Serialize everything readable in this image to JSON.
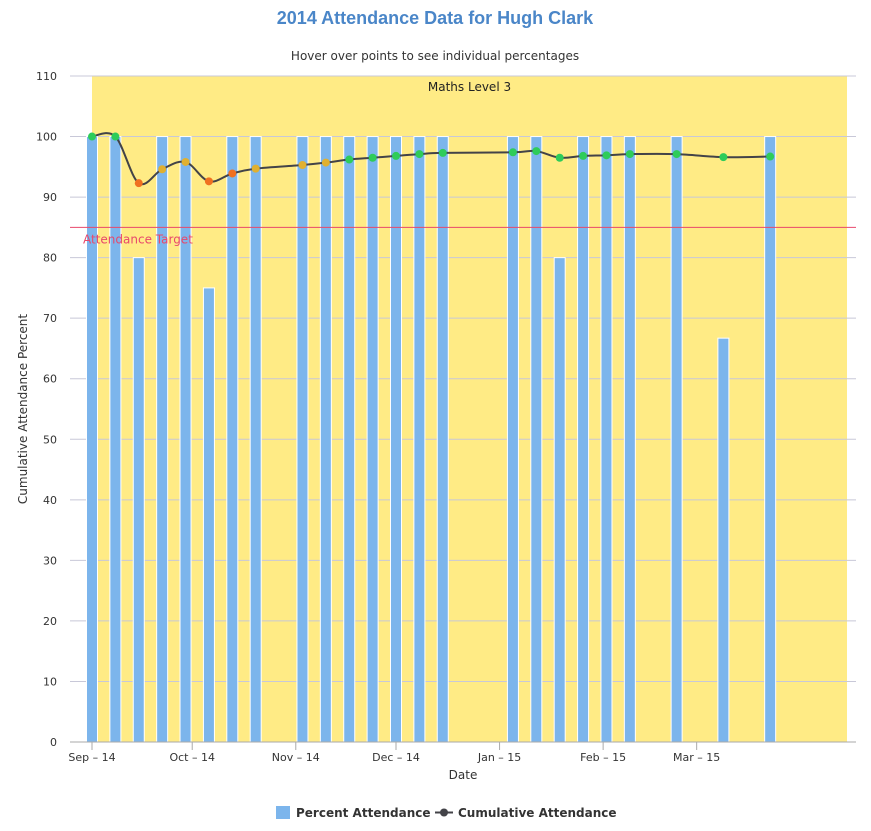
{
  "chart_data": {
    "type": "bar",
    "title": "2014 Attendance Data for Hugh Clark",
    "subtitle": "Hover over points to see individual percentages",
    "xlabel": "Date",
    "ylabel": "Cumulative Attendance Percent",
    "ylim": [
      0,
      110
    ],
    "yticks": [
      0,
      10,
      20,
      30,
      40,
      50,
      60,
      70,
      80,
      90,
      100,
      110
    ],
    "grid": true,
    "x_start": "2014-09-01",
    "x_end": "2015-04-15",
    "xticks": [
      {
        "date": "2014-09-01",
        "label": "Sep – 14"
      },
      {
        "date": "2014-10-01",
        "label": "Oct – 14"
      },
      {
        "date": "2014-11-01",
        "label": "Nov – 14"
      },
      {
        "date": "2014-12-01",
        "label": "Dec – 14"
      },
      {
        "date": "2015-01-01",
        "label": "Jan – 15"
      },
      {
        "date": "2015-02-01",
        "label": "Feb – 15"
      },
      {
        "date": "2015-03-01",
        "label": "Mar – 15"
      }
    ],
    "plot_band": {
      "label": "Maths Level 3",
      "from": 0,
      "to": 110,
      "x_from": "2014-09-01",
      "x_to": "2015-04-15",
      "color": "#ffeb85"
    },
    "plot_line": {
      "label": "Attendance Target",
      "value": 85,
      "color": "#e8486b"
    },
    "series": [
      {
        "name": "Percent Attendance",
        "type": "bar",
        "color": "#7cb5ec",
        "points": [
          {
            "x": "2014-09-01",
            "y": 100
          },
          {
            "x": "2014-09-08",
            "y": 100
          },
          {
            "x": "2014-09-15",
            "y": 80
          },
          {
            "x": "2014-09-22",
            "y": 100
          },
          {
            "x": "2014-09-29",
            "y": 100
          },
          {
            "x": "2014-10-06",
            "y": 75
          },
          {
            "x": "2014-10-13",
            "y": 100
          },
          {
            "x": "2014-10-20",
            "y": 100
          },
          {
            "x": "2014-11-03",
            "y": 100
          },
          {
            "x": "2014-11-10",
            "y": 100
          },
          {
            "x": "2014-11-17",
            "y": 100
          },
          {
            "x": "2014-11-24",
            "y": 100
          },
          {
            "x": "2014-12-01",
            "y": 100
          },
          {
            "x": "2014-12-08",
            "y": 100
          },
          {
            "x": "2014-12-15",
            "y": 100
          },
          {
            "x": "2015-01-05",
            "y": 100
          },
          {
            "x": "2015-01-12",
            "y": 100
          },
          {
            "x": "2015-01-19",
            "y": 80
          },
          {
            "x": "2015-01-26",
            "y": 100
          },
          {
            "x": "2015-02-02",
            "y": 100
          },
          {
            "x": "2015-02-09",
            "y": 100
          },
          {
            "x": "2015-02-23",
            "y": 100
          },
          {
            "x": "2015-03-09",
            "y": 66.7
          },
          {
            "x": "2015-03-23",
            "y": 100
          }
        ]
      },
      {
        "name": "Cumulative Attendance",
        "type": "spline",
        "color": "#434348",
        "points": [
          {
            "x": "2014-09-01",
            "y": 100,
            "color": "#2ecc5a"
          },
          {
            "x": "2014-09-08",
            "y": 100,
            "color": "#2ecc5a"
          },
          {
            "x": "2014-09-15",
            "y": 92.3,
            "color": "#f07020"
          },
          {
            "x": "2014-09-22",
            "y": 94.6,
            "color": "#e0b030"
          },
          {
            "x": "2014-09-29",
            "y": 95.8,
            "color": "#e0b030"
          },
          {
            "x": "2014-10-06",
            "y": 92.6,
            "color": "#f07020"
          },
          {
            "x": "2014-10-13",
            "y": 93.9,
            "color": "#f07020"
          },
          {
            "x": "2014-10-20",
            "y": 94.7,
            "color": "#e0b030"
          },
          {
            "x": "2014-11-03",
            "y": 95.3,
            "color": "#e0b030"
          },
          {
            "x": "2014-11-10",
            "y": 95.7,
            "color": "#e0b030"
          },
          {
            "x": "2014-11-17",
            "y": 96.2,
            "color": "#2ecc5a"
          },
          {
            "x": "2014-11-24",
            "y": 96.5,
            "color": "#2ecc5a"
          },
          {
            "x": "2014-12-01",
            "y": 96.8,
            "color": "#2ecc5a"
          },
          {
            "x": "2014-12-08",
            "y": 97.1,
            "color": "#2ecc5a"
          },
          {
            "x": "2014-12-15",
            "y": 97.3,
            "color": "#2ecc5a"
          },
          {
            "x": "2015-01-05",
            "y": 97.4,
            "color": "#2ecc5a"
          },
          {
            "x": "2015-01-12",
            "y": 97.6,
            "color": "#2ecc5a"
          },
          {
            "x": "2015-01-19",
            "y": 96.5,
            "color": "#2ecc5a"
          },
          {
            "x": "2015-01-26",
            "y": 96.8,
            "color": "#2ecc5a"
          },
          {
            "x": "2015-02-02",
            "y": 96.9,
            "color": "#2ecc5a"
          },
          {
            "x": "2015-02-09",
            "y": 97.1,
            "color": "#2ecc5a"
          },
          {
            "x": "2015-02-23",
            "y": 97.1,
            "color": "#2ecc5a"
          },
          {
            "x": "2015-03-09",
            "y": 96.6,
            "color": "#2ecc5a"
          },
          {
            "x": "2015-03-23",
            "y": 96.7,
            "color": "#2ecc5a"
          }
        ]
      }
    ],
    "legend": {
      "position": "bottom-center"
    }
  }
}
